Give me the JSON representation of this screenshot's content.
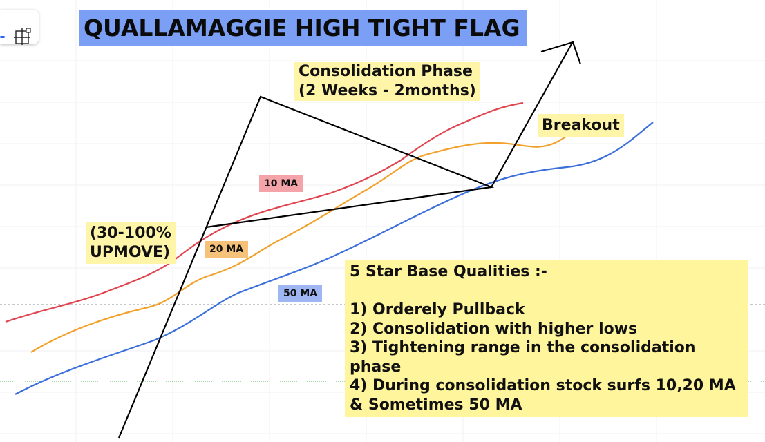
{
  "title": "QUALLAMAGGIE HIGH TIGHT FLAG",
  "labels": {
    "consolidation_line1": "Consolidation Phase",
    "consolidation_line2": "(2 Weeks - 2months)",
    "breakout": "Breakout",
    "upmove_line1": "(30-100%",
    "upmove_line2": "UPMOVE)"
  },
  "ma_tags": {
    "ma10": "10 MA",
    "ma20": "20 MA",
    "ma50": "50 MA"
  },
  "qualities": {
    "heading": "5 Star Base Qualities :-",
    "items": [
      "1) Orderely Pullback",
      "2) Consolidation with higher lows",
      "3) Tightening range in the consolidation",
      "phase",
      "4) During consolidation stock surfs 10,20 MA",
      "& Sometimes 50 MA"
    ]
  },
  "colors": {
    "ma10": "#e0444f",
    "ma20": "#f2a12c",
    "ma50": "#3b6fdc",
    "price_path": "#000000",
    "title_bg": "#7c9ff6",
    "note_bg": "#fff59d"
  },
  "icons": {
    "toolbar": "crosshair-move-icon"
  }
}
